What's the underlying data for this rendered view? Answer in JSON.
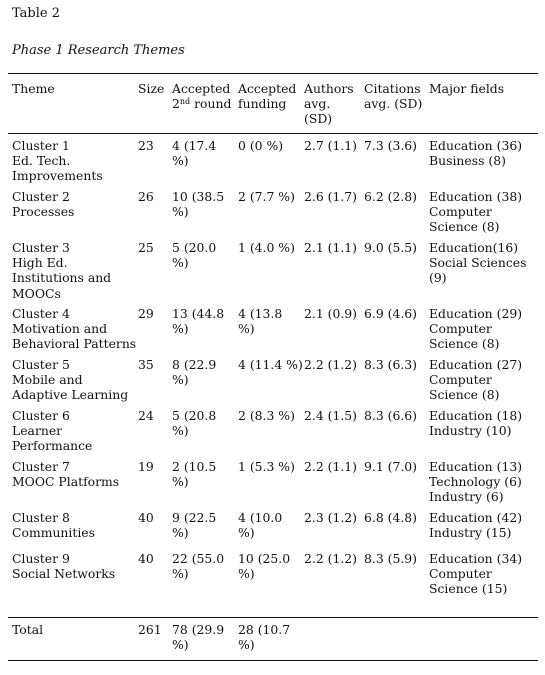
{
  "table_label": "Table 2",
  "table_title": "Phase 1 Research Themes",
  "headers": {
    "theme": "Theme",
    "size": "Size",
    "accepted_l1": "Accepted",
    "accepted_l2_num": "2",
    "accepted_l2_sup": "nd",
    "accepted_l2_rest": " round",
    "funding_l1": "Accepted",
    "funding_l2": "funding",
    "authors_l1": "Authors",
    "authors_l2": "avg.",
    "authors_l3": "(SD)",
    "citations_l1": "Citations",
    "citations_l2": "avg. (SD)",
    "major_fields": "Major fields"
  },
  "rows": [
    {
      "theme": [
        "Cluster 1",
        "Ed. Tech.",
        "Improvements"
      ],
      "size": "23",
      "accepted": [
        "4 (17.4",
        "%)"
      ],
      "funding": [
        "0 (0 %)"
      ],
      "authors": "2.7 (1.1)",
      "citations": "7.3 (3.6)",
      "fields": [
        "Education (36)",
        "Business (8)"
      ]
    },
    {
      "theme": [
        "Cluster 2",
        "Processes"
      ],
      "size": "26",
      "accepted": [
        "10 (38.5",
        "%)"
      ],
      "funding": [
        "2 (7.7 %)"
      ],
      "authors": "2.6 (1.7)",
      "citations": "6.2 (2.8)",
      "fields": [
        "Education (38)",
        "Computer",
        "Science (8)"
      ]
    },
    {
      "theme": [
        "Cluster 3",
        "High Ed.",
        "Institutions and",
        "MOOCs"
      ],
      "size": "25",
      "accepted": [
        "5 (20.0",
        "%)"
      ],
      "funding": [
        "1 (4.0 %)"
      ],
      "authors": "2.1 (1.1)",
      "citations": "9.0 (5.5)",
      "fields": [
        "Education(16)",
        "Social Sciences",
        "(9)"
      ]
    },
    {
      "theme": [
        "Cluster 4",
        "Motivation and",
        "Behavioral Patterns"
      ],
      "size": "29",
      "accepted": [
        "13 (44.8",
        "%)"
      ],
      "funding": [
        "4 (13.8",
        "%)"
      ],
      "authors": "2.1 (0.9)",
      "citations": "6.9 (4.6)",
      "fields": [
        "Education (29)",
        "Computer",
        "Science (8)"
      ]
    },
    {
      "theme": [
        "Cluster 5",
        "Mobile and",
        "Adaptive Learning"
      ],
      "size": "35",
      "accepted": [
        "8 (22.9",
        "%)"
      ],
      "funding": [
        "4 (11.4 %)"
      ],
      "authors": "2.2 (1.2)",
      "citations": "8.3 (6.3)",
      "fields": [
        "Education (27)",
        "Computer",
        "Science (8)"
      ]
    },
    {
      "theme": [
        "Cluster 6",
        "Learner",
        "Performance"
      ],
      "size": "24",
      "accepted": [
        "5 (20.8",
        "%)"
      ],
      "funding": [
        "2 (8.3 %)"
      ],
      "authors": "2.4 (1.5)",
      "citations": "8.3 (6.6)",
      "fields": [
        "Education (18)",
        "Industry (10)"
      ]
    },
    {
      "theme": [
        "Cluster 7",
        "MOOC Platforms"
      ],
      "size": "19",
      "accepted": [
        "2 (10.5",
        "%)"
      ],
      "funding": [
        "1 (5.3 %)"
      ],
      "authors": "2.2 (1.1)",
      "citations": "9.1 (7.0)",
      "fields": [
        "Education (13)",
        "Technology (6)",
        "Industry (6)"
      ]
    },
    {
      "theme": [
        "Cluster 8",
        "Communities"
      ],
      "size": "40",
      "accepted": [
        "9 (22.5",
        "%)"
      ],
      "funding": [
        "4 (10.0",
        "%)"
      ],
      "authors": "2.3 (1.2)",
      "citations": "6.8 (4.8)",
      "fields": [
        "Education (42)",
        "Industry (15)"
      ]
    },
    {
      "theme": [
        "Cluster 9",
        "Social Networks"
      ],
      "size": "40",
      "accepted": [
        "22 (55.0",
        "%)"
      ],
      "funding": [
        "10 (25.0",
        "%)"
      ],
      "authors": "2.2 (1.2)",
      "citations": "8.3 (5.9)",
      "fields": [
        "Education (34)",
        "Computer",
        "Science (15)"
      ]
    }
  ],
  "total": {
    "label": "Total",
    "size": "261",
    "accepted": [
      "78 (29.9",
      "%)"
    ],
    "funding": [
      "28 (10.7",
      "%)"
    ]
  }
}
